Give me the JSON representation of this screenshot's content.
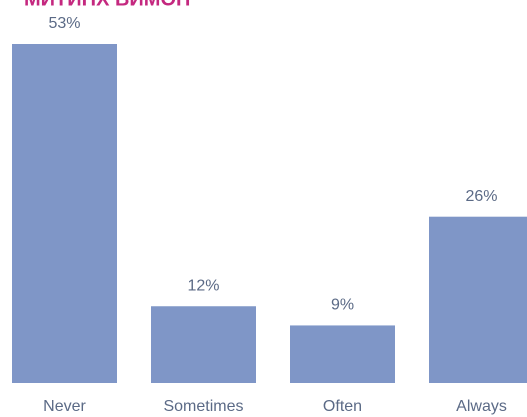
{
  "chart_data": {
    "type": "bar",
    "title": "МИТИНХ ВИМОП",
    "categories": [
      "Never",
      "Sometimes",
      "Often",
      "Always"
    ],
    "values": [
      53,
      12,
      9,
      26
    ],
    "value_labels": [
      "53%",
      "12%",
      "9%",
      "26%"
    ],
    "color": "#7f96c7"
  }
}
